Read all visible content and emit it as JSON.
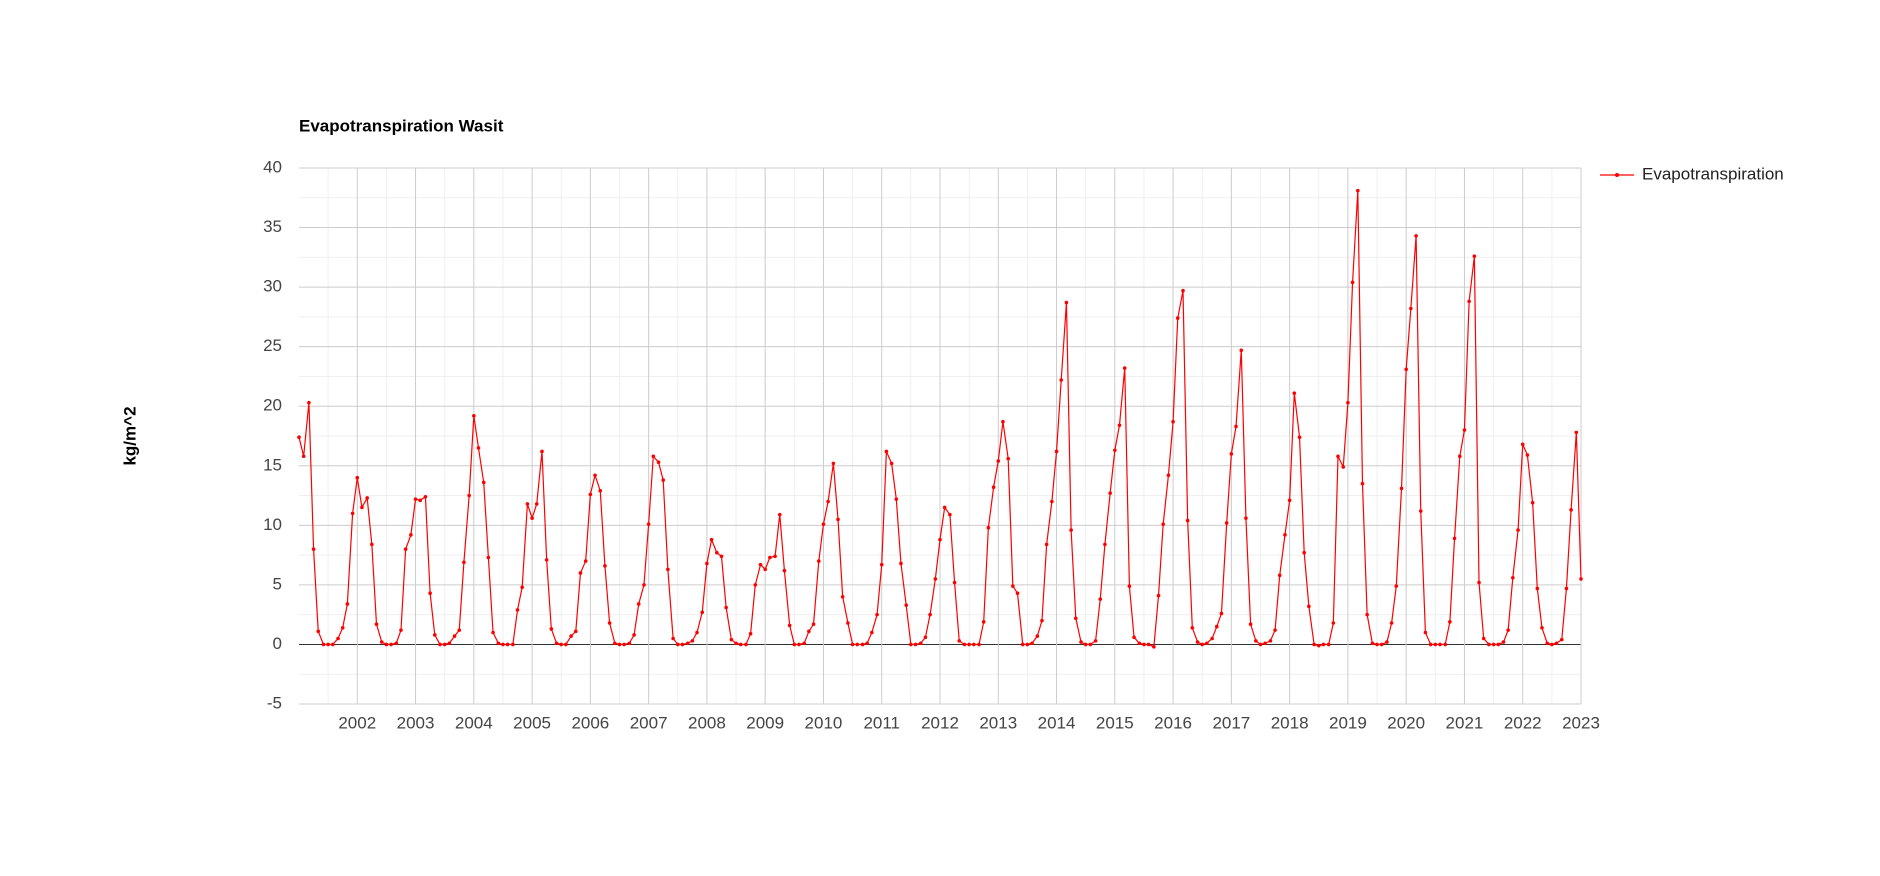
{
  "chart_data": {
    "type": "line",
    "title": "Evapotranspiration Wasit",
    "y_label": "kg/m^2",
    "xlim": [
      2001,
      2023
    ],
    "xticks": [
      2002,
      2003,
      2004,
      2005,
      2006,
      2007,
      2008,
      2009,
      2010,
      2011,
      2012,
      2013,
      2014,
      2015,
      2016,
      2017,
      2018,
      2019,
      2020,
      2021,
      2022,
      2023
    ],
    "ylim": [
      -5,
      40
    ],
    "yticks": [
      -5,
      0,
      5,
      10,
      15,
      20,
      25,
      30,
      35,
      40
    ],
    "grid": true,
    "legend": "right",
    "x": [
      2001.0,
      2001.08,
      2001.17,
      2001.25,
      2001.33,
      2001.42,
      2001.5,
      2001.58,
      2001.67,
      2001.75,
      2001.83,
      2001.92,
      2002.0,
      2002.08,
      2002.17,
      2002.25,
      2002.33,
      2002.42,
      2002.5,
      2002.58,
      2002.67,
      2002.75,
      2002.83,
      2002.92,
      2003.0,
      2003.08,
      2003.17,
      2003.25,
      2003.33,
      2003.42,
      2003.5,
      2003.58,
      2003.67,
      2003.75,
      2003.83,
      2003.92,
      2004.0,
      2004.08,
      2004.17,
      2004.25,
      2004.33,
      2004.42,
      2004.5,
      2004.58,
      2004.67,
      2004.75,
      2004.83,
      2004.92,
      2005.0,
      2005.08,
      2005.17,
      2005.25,
      2005.33,
      2005.42,
      2005.5,
      2005.58,
      2005.67,
      2005.75,
      2005.83,
      2005.92,
      2006.0,
      2006.08,
      2006.17,
      2006.25,
      2006.33,
      2006.42,
      2006.5,
      2006.58,
      2006.67,
      2006.75,
      2006.83,
      2006.92,
      2007.0,
      2007.08,
      2007.17,
      2007.25,
      2007.33,
      2007.42,
      2007.5,
      2007.58,
      2007.67,
      2007.75,
      2007.83,
      2007.92,
      2008.0,
      2008.08,
      2008.17,
      2008.25,
      2008.33,
      2008.42,
      2008.5,
      2008.58,
      2008.67,
      2008.75,
      2008.83,
      2008.92,
      2009.0,
      2009.08,
      2009.17,
      2009.25,
      2009.33,
      2009.42,
      2009.5,
      2009.58,
      2009.67,
      2009.75,
      2009.83,
      2009.92,
      2010.0,
      2010.08,
      2010.17,
      2010.25,
      2010.33,
      2010.42,
      2010.5,
      2010.58,
      2010.67,
      2010.75,
      2010.83,
      2010.92,
      2011.0,
      2011.08,
      2011.17,
      2011.25,
      2011.33,
      2011.42,
      2011.5,
      2011.58,
      2011.67,
      2011.75,
      2011.83,
      2011.92,
      2012.0,
      2012.08,
      2012.17,
      2012.25,
      2012.33,
      2012.42,
      2012.5,
      2012.58,
      2012.67,
      2012.75,
      2012.83,
      2012.92,
      2013.0,
      2013.08,
      2013.17,
      2013.25,
      2013.33,
      2013.42,
      2013.5,
      2013.58,
      2013.67,
      2013.75,
      2013.83,
      2013.92,
      2014.0,
      2014.08,
      2014.17,
      2014.25,
      2014.33,
      2014.42,
      2014.5,
      2014.58,
      2014.67,
      2014.75,
      2014.83,
      2014.92,
      2015.0,
      2015.08,
      2015.17,
      2015.25,
      2015.33,
      2015.42,
      2015.5,
      2015.58,
      2015.67,
      2015.75,
      2015.83,
      2015.92,
      2016.0,
      2016.08,
      2016.17,
      2016.25,
      2016.33,
      2016.42,
      2016.5,
      2016.58,
      2016.67,
      2016.75,
      2016.83,
      2016.92,
      2017.0,
      2017.08,
      2017.17,
      2017.25,
      2017.33,
      2017.42,
      2017.5,
      2017.58,
      2017.67,
      2017.75,
      2017.83,
      2017.92,
      2018.0,
      2018.08,
      2018.17,
      2018.25,
      2018.33,
      2018.42,
      2018.5,
      2018.58,
      2018.67,
      2018.75,
      2018.83,
      2018.92,
      2019.0,
      2019.08,
      2019.17,
      2019.25,
      2019.33,
      2019.42,
      2019.5,
      2019.58,
      2019.67,
      2019.75,
      2019.83,
      2019.92,
      2020.0,
      2020.08,
      2020.17,
      2020.25,
      2020.33,
      2020.42,
      2020.5,
      2020.58,
      2020.67,
      2020.75,
      2020.83,
      2020.92,
      2021.0,
      2021.08,
      2021.17,
      2021.25,
      2021.33,
      2021.42,
      2021.5,
      2021.58,
      2021.67,
      2021.75,
      2021.83,
      2021.92,
      2022.0,
      2022.08,
      2022.17,
      2022.25,
      2022.33,
      2022.42,
      2022.5,
      2022.58,
      2022.67,
      2022.75,
      2022.83,
      2022.92,
      2023.0
    ],
    "series": [
      {
        "name": "Evapotranspiration",
        "color": "#ff0000",
        "values": [
          17.4,
          15.8,
          20.3,
          8.0,
          1.1,
          0.0,
          0.0,
          0.0,
          0.5,
          1.4,
          3.4,
          11.0,
          14.0,
          11.5,
          12.3,
          8.4,
          1.7,
          0.2,
          0.0,
          0.0,
          0.1,
          1.2,
          8.0,
          9.2,
          12.2,
          12.1,
          12.4,
          4.3,
          0.8,
          0.0,
          0.0,
          0.1,
          0.7,
          1.2,
          6.9,
          12.5,
          19.2,
          16.5,
          13.6,
          7.3,
          1.0,
          0.1,
          0.0,
          0.0,
          0.0,
          2.9,
          4.8,
          11.8,
          10.6,
          11.8,
          16.2,
          7.1,
          1.3,
          0.1,
          0.0,
          0.0,
          0.7,
          1.1,
          6.0,
          7.0,
          12.6,
          14.2,
          12.9,
          6.6,
          1.8,
          0.1,
          0.0,
          0.0,
          0.1,
          0.8,
          3.4,
          5.0,
          10.1,
          15.8,
          15.3,
          13.8,
          6.3,
          0.5,
          0.0,
          0.0,
          0.1,
          0.3,
          1.0,
          2.7,
          6.8,
          8.8,
          7.7,
          7.4,
          3.1,
          0.4,
          0.1,
          0.0,
          0.0,
          0.9,
          5.0,
          6.7,
          6.3,
          7.3,
          7.4,
          10.9,
          6.2,
          1.6,
          0.0,
          0.0,
          0.1,
          1.1,
          1.7,
          7.0,
          10.1,
          12.0,
          15.2,
          10.5,
          4.0,
          1.8,
          0.0,
          0.0,
          0.0,
          0.1,
          1.0,
          2.5,
          6.7,
          16.2,
          15.2,
          12.2,
          6.8,
          3.3,
          0.0,
          0.0,
          0.1,
          0.6,
          2.5,
          5.5,
          8.8,
          11.5,
          10.9,
          5.2,
          0.3,
          0.0,
          0.0,
          0.0,
          0.0,
          1.9,
          9.8,
          13.2,
          15.4,
          18.7,
          15.6,
          4.9,
          4.3,
          0.0,
          0.0,
          0.1,
          0.7,
          2.0,
          8.4,
          12.0,
          16.2,
          22.2,
          28.7,
          9.6,
          2.2,
          0.2,
          0.0,
          0.0,
          0.3,
          3.8,
          8.4,
          12.7,
          16.3,
          18.4,
          23.2,
          4.9,
          0.6,
          0.1,
          0.0,
          0.0,
          -0.2,
          4.1,
          10.1,
          14.2,
          18.7,
          27.4,
          29.7,
          10.4,
          1.4,
          0.2,
          0.0,
          0.1,
          0.5,
          1.5,
          2.6,
          10.2,
          16.0,
          18.3,
          24.7,
          10.6,
          1.7,
          0.3,
          0.0,
          0.1,
          0.3,
          1.2,
          5.8,
          9.2,
          12.1,
          21.1,
          17.4,
          7.7,
          3.2,
          0.0,
          -0.1,
          0.0,
          0.0,
          1.8,
          15.8,
          14.9,
          20.3,
          30.4,
          38.1,
          13.5,
          2.5,
          0.1,
          0.0,
          0.0,
          0.2,
          1.8,
          4.9,
          13.1,
          23.1,
          28.2,
          34.3,
          11.2,
          1.0,
          0.0,
          0.0,
          0.0,
          0.0,
          1.9,
          8.9,
          15.8,
          18.0,
          28.8,
          32.6,
          5.2,
          0.5,
          0.0,
          0.0,
          0.0,
          0.2,
          1.2,
          5.6,
          9.6,
          16.8,
          15.9,
          11.9,
          4.7,
          1.4,
          0.1,
          0.0,
          0.1,
          0.4,
          4.7,
          11.3,
          17.8,
          5.5
        ]
      }
    ]
  }
}
